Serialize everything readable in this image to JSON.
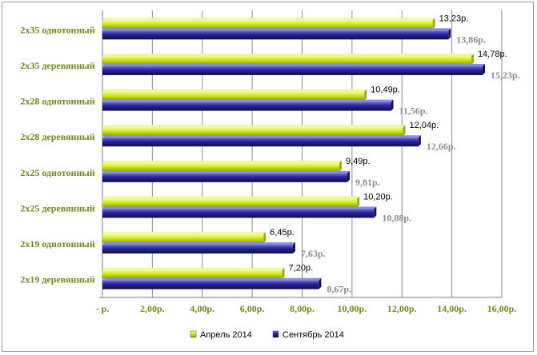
{
  "chart_data": {
    "type": "bar",
    "orientation": "horizontal",
    "categories": [
      "2x35 однотонный",
      "2x35 деревянный",
      "2x28 однотонный",
      "2x28 деревянный",
      "2x25 однотонный",
      "2x25 деревянный",
      "2x19 однотонный",
      "2x19 деревянный"
    ],
    "series": [
      {
        "name": "Апрель 2014",
        "color": "#c8dc14",
        "values": [
          13.23,
          14.78,
          10.49,
          12.04,
          9.49,
          10.2,
          6.45,
          7.2
        ],
        "labels": [
          "13,23р.",
          "14,78р.",
          "10,49р.",
          "12,04р.",
          "9,49р.",
          "10,20р.",
          "6,45р.",
          "7,20р."
        ]
      },
      {
        "name": "Сентябрь 2014",
        "color": "#1e1e78",
        "values": [
          13.86,
          15.23,
          11.56,
          12.66,
          9.81,
          10.88,
          7.63,
          8.67
        ],
        "labels": [
          "13,86р.",
          "15,23р.",
          "11,56р.",
          "12,66р.",
          "9,81р.",
          "10,88р.",
          "7,63р.",
          "8,67р."
        ]
      }
    ],
    "xlim": [
      0,
      16
    ],
    "x_ticks": [
      0,
      2,
      4,
      6,
      8,
      10,
      12,
      14,
      16
    ],
    "x_tick_labels": [
      "- р.",
      "2,00р.",
      "4,00р.",
      "6,00р.",
      "8,00р.",
      "10,00р.",
      "12,00р.",
      "14,00р.",
      "16,00р."
    ],
    "grid": "vertical",
    "legend_position": "bottom",
    "title": "",
    "xlabel": "",
    "ylabel": ""
  }
}
